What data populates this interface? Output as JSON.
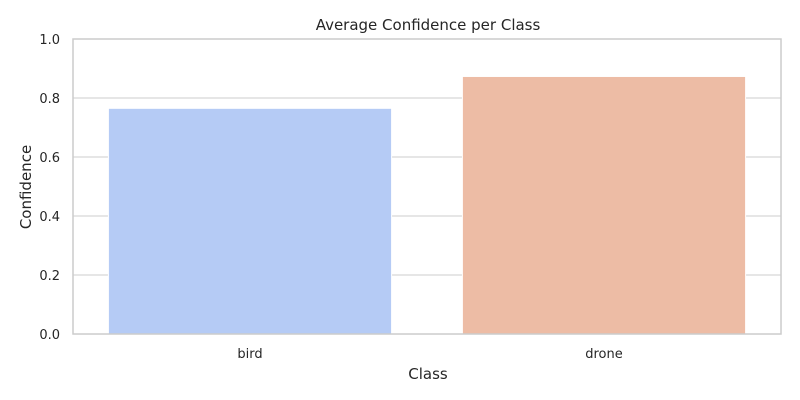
{
  "chart_data": {
    "type": "bar",
    "title": "Average Confidence per Class",
    "xlabel": "Class",
    "ylabel": "Confidence",
    "categories": [
      "bird",
      "drone"
    ],
    "values": [
      0.765,
      0.873
    ],
    "colors": [
      "#b5cbf5",
      "#edbca5"
    ],
    "ylim": [
      0,
      1.0
    ],
    "yticks": [
      "0.0",
      "0.2",
      "0.4",
      "0.6",
      "0.8",
      "1.0"
    ],
    "grid": true,
    "legend": "none"
  }
}
